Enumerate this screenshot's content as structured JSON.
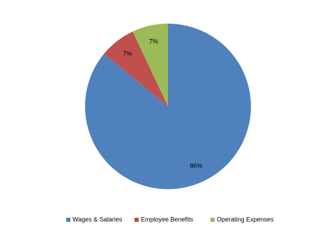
{
  "chart_data": {
    "type": "pie",
    "categories": [
      "Wages & Salaries",
      "Employee Benefits",
      "Operating Expenses"
    ],
    "values": [
      86,
      7,
      7
    ],
    "value_labels": [
      "86%",
      "7%",
      "7%"
    ],
    "colors": [
      "#4f81bd",
      "#c0504d",
      "#9bbb59"
    ],
    "legend": "bottom"
  }
}
